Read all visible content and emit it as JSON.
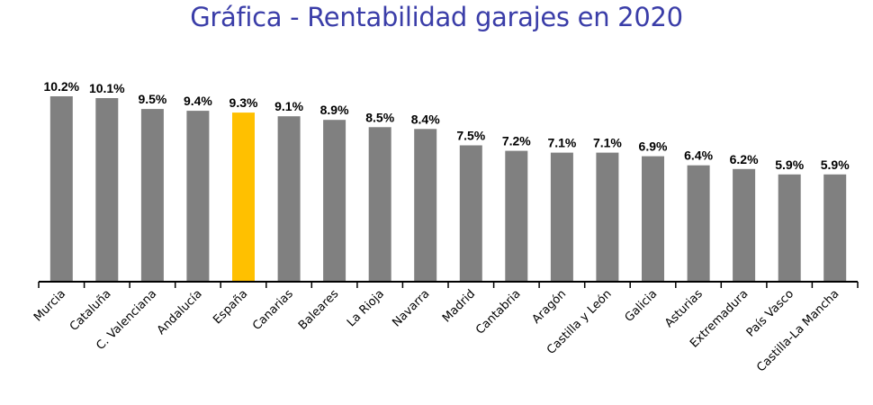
{
  "chart_data": {
    "type": "bar",
    "title": "Gráfica - Rentabilidad garajes en 2020",
    "categories": [
      "Murcia",
      "Cataluña",
      "C. Valenciana",
      "Andalucía",
      "España",
      "Canarias",
      "Baleares",
      "La Rioja",
      "Navarra",
      "Madrid",
      "Cantabria",
      "Aragón",
      "Castilla y León",
      "Galicia",
      "Asturias",
      "Extremadura",
      "País Vasco",
      "Castilla-La Mancha"
    ],
    "values": [
      10.2,
      10.1,
      9.5,
      9.4,
      9.3,
      9.1,
      8.9,
      8.5,
      8.4,
      7.5,
      7.2,
      7.1,
      7.1,
      6.9,
      6.4,
      6.2,
      5.9,
      5.9
    ],
    "value_labels": [
      "10.2%",
      "10.1%",
      "9.5%",
      "9.4%",
      "9.3%",
      "9.1%",
      "8.9%",
      "8.5%",
      "8.4%",
      "7.5%",
      "7.2%",
      "7.1%",
      "7.1%",
      "6.9%",
      "6.4%",
      "6.2%",
      "5.9%",
      "5.9%"
    ],
    "highlight_category": "España",
    "colors": {
      "bar": "#808080",
      "highlight": "#ffc000",
      "title": "#3a3da8",
      "axis": "#000000"
    },
    "xlabel": "",
    "ylabel": "",
    "grid": false,
    "legend": "none"
  }
}
